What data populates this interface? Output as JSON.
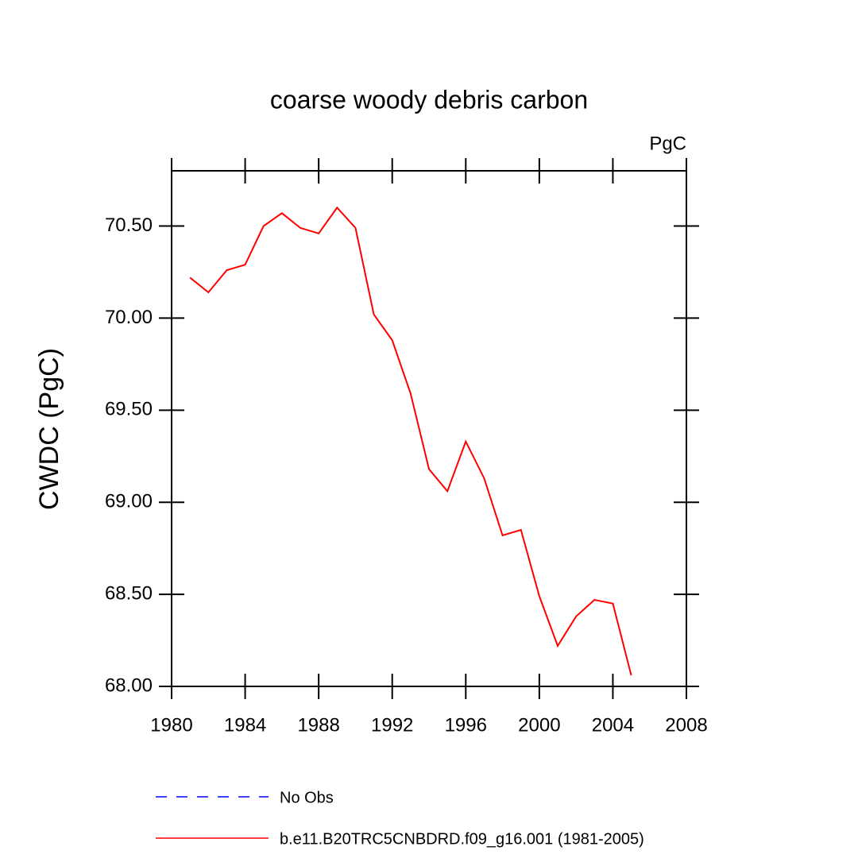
{
  "chart_data": {
    "type": "line",
    "title": "coarse woody debris carbon",
    "units": "PgC",
    "y_label": "CWDC  (PgC)",
    "x": [
      1981,
      1982,
      1983,
      1984,
      1985,
      1986,
      1987,
      1988,
      1989,
      1990,
      1991,
      1992,
      1993,
      1994,
      1995,
      1996,
      1997,
      1998,
      1999,
      2000,
      2001,
      2002,
      2003,
      2004,
      2005
    ],
    "series": [
      {
        "name": "No Obs",
        "color": "#0000ff",
        "dashed": true,
        "values": [
          null,
          null,
          null,
          null,
          null,
          null,
          null,
          null,
          null,
          null,
          null,
          null,
          null,
          null,
          null,
          null,
          null,
          null,
          null,
          null,
          null,
          null,
          null,
          null,
          null
        ]
      },
      {
        "name": "b.e11.B20TRC5CNBDRD.f09_g16.001 (1981-2005)",
        "color": "#ff0000",
        "dashed": false,
        "values": [
          70.22,
          70.14,
          70.26,
          70.29,
          70.5,
          70.57,
          70.49,
          70.46,
          70.6,
          70.49,
          70.02,
          69.88,
          69.59,
          69.18,
          69.06,
          69.33,
          69.13,
          68.82,
          68.85,
          68.49,
          68.22,
          68.38,
          68.47,
          68.45,
          68.06
        ]
      }
    ],
    "xlim": [
      1980,
      2008
    ],
    "xticks": [
      1980,
      1984,
      1988,
      1992,
      1996,
      2000,
      2004,
      2008
    ],
    "ylim": [
      68,
      70.8
    ],
    "yticks": [
      {
        "value": 68,
        "label": "68.00"
      },
      {
        "value": 68.5,
        "label": "68.50"
      },
      {
        "value": 69,
        "label": "69.00"
      },
      {
        "value": 69.5,
        "label": "69.50"
      },
      {
        "value": 70,
        "label": "70.00"
      },
      {
        "value": 70.5,
        "label": "70.50"
      }
    ]
  }
}
